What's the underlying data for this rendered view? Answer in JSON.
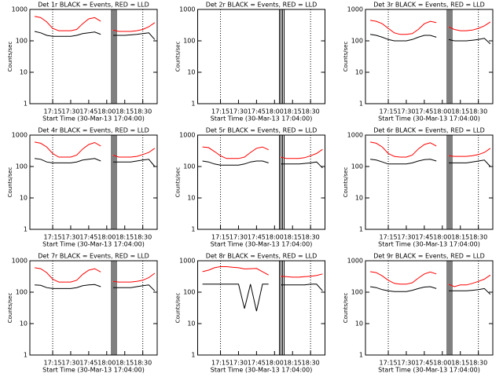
{
  "chart_data": [
    {
      "type": "line",
      "title": "Det 1r BLACK = Events, RED = LLD",
      "x_label": "Start Time (30-Mar-13 17:04:00)",
      "y_label": "Counts/sec",
      "log_y": true,
      "x": [
        0,
        5,
        10,
        15,
        20,
        25,
        30,
        35,
        40,
        45,
        50,
        55,
        60,
        65,
        70,
        75,
        80,
        85,
        90,
        95,
        100
      ],
      "xlim": [
        -4,
        102
      ],
      "ylim": [
        1,
        1000
      ],
      "xticks": [
        {
          "value": 15,
          "label": "17:15"
        },
        {
          "value": 30,
          "label": "17:30"
        },
        {
          "value": 45,
          "label": "17:45"
        },
        {
          "value": 60,
          "label": "18:00"
        },
        {
          "value": 75,
          "label": "18:15"
        },
        {
          "value": 90,
          "label": "18:30"
        }
      ],
      "yticks": [
        1,
        10,
        100,
        1000
      ],
      "series": [
        {
          "name": "LLD",
          "color": "#ff0000",
          "values": [
            600,
            550,
            400,
            250,
            210,
            210,
            210,
            230,
            350,
            500,
            550,
            420,
            null,
            220,
            200,
            200,
            200,
            210,
            230,
            280,
            380
          ]
        },
        {
          "name": "Events",
          "color": "#000000",
          "values": [
            200,
            180,
            150,
            140,
            140,
            140,
            140,
            150,
            170,
            180,
            190,
            160,
            null,
            150,
            150,
            150,
            155,
            160,
            170,
            180,
            110
          ]
        }
      ]
    },
    {
      "type": "line",
      "title": "Det 2r BLACK = Events, RED = LLD",
      "x_label": "Start Time (30-Mar-13 17:04:00)",
      "y_label": "Counts/sec",
      "log_y": true,
      "x": [],
      "xlim": [
        -4,
        102
      ],
      "ylim": [
        1,
        1000
      ],
      "xticks": [
        {
          "value": 15,
          "label": "17:15"
        },
        {
          "value": 30,
          "label": "17:30"
        },
        {
          "value": 45,
          "label": "17:45"
        },
        {
          "value": 60,
          "label": "18:00"
        },
        {
          "value": 75,
          "label": "18:15"
        },
        {
          "value": 90,
          "label": "18:30"
        }
      ],
      "yticks": [
        1,
        10,
        100,
        1000
      ],
      "series": []
    },
    {
      "type": "line",
      "title": "Det 3r BLACK = Events, RED = LLD",
      "x_label": "Start Time (30-Mar-13 17:04:00)",
      "y_label": "Counts/sec",
      "log_y": true,
      "x": [
        0,
        5,
        10,
        15,
        20,
        25,
        30,
        35,
        40,
        45,
        50,
        55,
        60,
        65,
        70,
        75,
        80,
        85,
        90,
        95,
        100
      ],
      "xlim": [
        -4,
        102
      ],
      "ylim": [
        1,
        1000
      ],
      "xticks": [
        {
          "value": 15,
          "label": "17:15"
        },
        {
          "value": 30,
          "label": "17:30"
        },
        {
          "value": 45,
          "label": "17:45"
        },
        {
          "value": 60,
          "label": "18:00"
        },
        {
          "value": 75,
          "label": "18:15"
        },
        {
          "value": 90,
          "label": "18:30"
        }
      ],
      "yticks": [
        1,
        10,
        100,
        1000
      ],
      "series": [
        {
          "name": "LLD",
          "color": "#ff0000",
          "values": [
            450,
            420,
            350,
            250,
            180,
            160,
            160,
            170,
            230,
            350,
            420,
            380,
            null,
            280,
            230,
            210,
            210,
            220,
            250,
            300,
            400
          ]
        },
        {
          "name": "Events",
          "color": "#000000",
          "values": [
            160,
            150,
            130,
            110,
            100,
            100,
            100,
            110,
            130,
            150,
            150,
            130,
            null,
            110,
            100,
            100,
            100,
            105,
            110,
            120,
            80
          ]
        }
      ]
    },
    {
      "type": "line",
      "title": "Det 4r BLACK = Events, RED = LLD",
      "x_label": "Start Time (30-Mar-13 17:04:00)",
      "y_label": "Counts/sec",
      "log_y": true,
      "x": [
        0,
        5,
        10,
        15,
        20,
        25,
        30,
        35,
        40,
        45,
        50,
        55,
        60,
        65,
        70,
        75,
        80,
        85,
        90,
        95,
        100
      ],
      "xlim": [
        -4,
        102
      ],
      "ylim": [
        1,
        1000
      ],
      "xticks": [
        {
          "value": 15,
          "label": "17:15"
        },
        {
          "value": 30,
          "label": "17:30"
        },
        {
          "value": 45,
          "label": "17:45"
        },
        {
          "value": 60,
          "label": "18:00"
        },
        {
          "value": 75,
          "label": "18:15"
        },
        {
          "value": 90,
          "label": "18:30"
        }
      ],
      "yticks": [
        1,
        10,
        100,
        1000
      ],
      "series": [
        {
          "name": "LLD",
          "color": "#ff0000",
          "values": [
            600,
            550,
            420,
            260,
            200,
            200,
            200,
            230,
            360,
            500,
            580,
            450,
            null,
            230,
            200,
            200,
            200,
            210,
            240,
            280,
            380
          ]
        },
        {
          "name": "Events",
          "color": "#000000",
          "values": [
            180,
            170,
            140,
            130,
            130,
            130,
            130,
            140,
            160,
            170,
            180,
            150,
            null,
            140,
            140,
            140,
            140,
            150,
            160,
            170,
            100
          ]
        }
      ]
    },
    {
      "type": "line",
      "title": "Det 5r BLACK = Events, RED = LLD",
      "x_label": "Start Time (30-Mar-13 17:04:00)",
      "y_label": "Counts/sec",
      "log_y": true,
      "x": [
        0,
        5,
        10,
        15,
        20,
        25,
        30,
        35,
        40,
        45,
        50,
        55,
        60,
        65,
        70,
        75,
        80,
        85,
        90,
        95,
        100
      ],
      "xlim": [
        -4,
        102
      ],
      "ylim": [
        1,
        1000
      ],
      "xticks": [
        {
          "value": 15,
          "label": "17:15"
        },
        {
          "value": 30,
          "label": "17:30"
        },
        {
          "value": 45,
          "label": "17:45"
        },
        {
          "value": 60,
          "label": "18:00"
        },
        {
          "value": 75,
          "label": "18:15"
        },
        {
          "value": 90,
          "label": "18:30"
        }
      ],
      "yticks": [
        1,
        10,
        100,
        1000
      ],
      "series": [
        {
          "name": "LLD",
          "color": "#ff0000",
          "values": [
            420,
            400,
            300,
            220,
            180,
            180,
            180,
            200,
            280,
            380,
            420,
            340,
            null,
            200,
            180,
            180,
            180,
            190,
            220,
            260,
            350
          ]
        },
        {
          "name": "Events",
          "color": "#000000",
          "values": [
            150,
            140,
            120,
            110,
            110,
            110,
            110,
            120,
            140,
            150,
            150,
            130,
            null,
            120,
            120,
            120,
            120,
            125,
            130,
            140,
            90
          ]
        }
      ]
    },
    {
      "type": "line",
      "title": "Det 6r BLACK = Events, RED = LLD",
      "x_label": "Start Time (30-Mar-13 17:04:00)",
      "y_label": "Counts/sec",
      "log_y": true,
      "x": [
        0,
        5,
        10,
        15,
        20,
        25,
        30,
        35,
        40,
        45,
        50,
        55,
        60,
        65,
        70,
        75,
        80,
        85,
        90,
        95,
        100
      ],
      "xlim": [
        -4,
        102
      ],
      "ylim": [
        1,
        1000
      ],
      "xticks": [
        {
          "value": 15,
          "label": "17:15"
        },
        {
          "value": 30,
          "label": "17:30"
        },
        {
          "value": 45,
          "label": "17:45"
        },
        {
          "value": 60,
          "label": "18:00"
        },
        {
          "value": 75,
          "label": "18:15"
        },
        {
          "value": 90,
          "label": "18:30"
        }
      ],
      "yticks": [
        1,
        10,
        100,
        1000
      ],
      "series": [
        {
          "name": "LLD",
          "color": "#ff0000",
          "values": [
            600,
            550,
            420,
            260,
            210,
            200,
            200,
            230,
            360,
            500,
            570,
            450,
            null,
            220,
            210,
            210,
            210,
            220,
            240,
            280,
            380
          ]
        },
        {
          "name": "Events",
          "color": "#000000",
          "values": [
            170,
            160,
            140,
            120,
            120,
            120,
            120,
            130,
            150,
            165,
            170,
            150,
            null,
            130,
            130,
            130,
            130,
            140,
            150,
            160,
            100
          ]
        }
      ]
    },
    {
      "type": "line",
      "title": "Det 7r BLACK = Events, RED = LLD",
      "x_label": "Start Time (30-Mar-13 17:04:00)",
      "y_label": "Counts/sec",
      "log_y": true,
      "x": [
        0,
        5,
        10,
        15,
        20,
        25,
        30,
        35,
        40,
        45,
        50,
        55,
        60,
        65,
        70,
        75,
        80,
        85,
        90,
        95,
        100
      ],
      "xlim": [
        -4,
        102
      ],
      "ylim": [
        1,
        1000
      ],
      "xticks": [
        {
          "value": 15,
          "label": "17:15"
        },
        {
          "value": 30,
          "label": "17:30"
        },
        {
          "value": 45,
          "label": "17:45"
        },
        {
          "value": 60,
          "label": "18:00"
        },
        {
          "value": 75,
          "label": "18:15"
        },
        {
          "value": 90,
          "label": "18:30"
        }
      ],
      "yticks": [
        1,
        10,
        100,
        1000
      ],
      "series": [
        {
          "name": "LLD",
          "color": "#ff0000",
          "values": [
            600,
            560,
            420,
            260,
            210,
            210,
            210,
            240,
            370,
            500,
            560,
            440,
            null,
            220,
            210,
            210,
            210,
            220,
            240,
            290,
            400
          ]
        },
        {
          "name": "Events",
          "color": "#000000",
          "values": [
            170,
            165,
            140,
            130,
            130,
            130,
            130,
            140,
            160,
            170,
            175,
            150,
            null,
            140,
            140,
            140,
            140,
            150,
            160,
            170,
            110
          ]
        }
      ]
    },
    {
      "type": "line",
      "title": "Det 8r BLACK = Events, RED = LLD",
      "x_label": "Start Time (30-Mar-13 17:04:00)",
      "y_label": "Counts/sec",
      "log_y": true,
      "x": [
        0,
        5,
        10,
        15,
        20,
        25,
        30,
        35,
        40,
        45,
        50,
        55,
        60,
        65,
        70,
        75,
        80,
        85,
        90,
        95,
        100
      ],
      "xlim": [
        -4,
        102
      ],
      "ylim": [
        1,
        1000
      ],
      "xticks": [
        {
          "value": 15,
          "label": "17:15"
        },
        {
          "value": 30,
          "label": "17:30"
        },
        {
          "value": 45,
          "label": "17:45"
        },
        {
          "value": 60,
          "label": "18:00"
        },
        {
          "value": 75,
          "label": "18:15"
        },
        {
          "value": 90,
          "label": "18:30"
        }
      ],
      "yticks": [
        1,
        10,
        100,
        1000
      ],
      "series": [
        {
          "name": "LLD",
          "color": "#ff0000",
          "values": [
            450,
            500,
            600,
            650,
            650,
            620,
            600,
            550,
            560,
            570,
            450,
            350,
            null,
            320,
            310,
            300,
            300,
            310,
            320,
            340,
            380
          ]
        },
        {
          "name": "Events",
          "color": "#000000",
          "values": [
            180,
            180,
            180,
            180,
            180,
            180,
            180,
            30,
            180,
            25,
            180,
            180,
            null,
            170,
            170,
            170,
            170,
            170,
            180,
            180,
            110
          ]
        }
      ]
    },
    {
      "type": "line",
      "title": "Det 9r BLACK = Events, RED = LLD",
      "x_label": "Start Time (30-Mar-13 17:04:00)",
      "y_label": "Counts/sec",
      "log_y": true,
      "x": [
        0,
        5,
        10,
        15,
        20,
        25,
        30,
        35,
        40,
        45,
        50,
        55,
        60,
        65,
        70,
        75,
        80,
        85,
        90,
        95,
        100
      ],
      "xlim": [
        -4,
        102
      ],
      "ylim": [
        1,
        1000
      ],
      "xticks": [
        {
          "value": 15,
          "label": "17:15"
        },
        {
          "value": 30,
          "label": "17:30"
        },
        {
          "value": 45,
          "label": "17:45"
        },
        {
          "value": 60,
          "label": "18:00"
        },
        {
          "value": 75,
          "label": "18:15"
        },
        {
          "value": 90,
          "label": "18:30"
        }
      ],
      "yticks": [
        1,
        10,
        100,
        1000
      ],
      "series": [
        {
          "name": "LLD",
          "color": "#ff0000",
          "values": [
            450,
            420,
            330,
            240,
            190,
            180,
            180,
            200,
            280,
            380,
            440,
            380,
            null,
            180,
            150,
            170,
            170,
            190,
            220,
            260,
            350
          ]
        },
        {
          "name": "Events",
          "color": "#000000",
          "values": [
            150,
            140,
            120,
            110,
            105,
            105,
            105,
            115,
            130,
            145,
            150,
            130,
            null,
            110,
            110,
            110,
            110,
            115,
            120,
            130,
            85
          ]
        }
      ]
    }
  ]
}
